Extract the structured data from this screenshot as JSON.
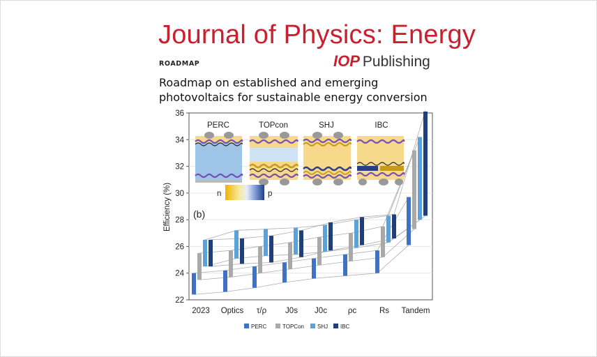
{
  "journal": {
    "name": "Journal of Physics: Energy",
    "article_type": "ROADMAP",
    "publisher_brand": "IOP",
    "publisher_word": "Publishing"
  },
  "paper": {
    "title": "Roadmap on established and emerging photovoltaics for sustainable energy conversion"
  },
  "figure": {
    "panel_label": "(b)",
    "structures": [
      "PERC",
      "TOPcon",
      "SHJ",
      "IBC"
    ],
    "doping_scale": {
      "left": "n",
      "right": "p"
    }
  },
  "colors": {
    "PERC": "#3f72c4",
    "TOPCon": "#a9a9a9",
    "SHJ": "#5aa2d8",
    "IBC": "#213e7a",
    "journal_red": "#c8202f"
  },
  "chart_data": {
    "type": "bar",
    "ylabel": "Efficiency (%)",
    "ylim": [
      22,
      36
    ],
    "yticks": [
      "22",
      "24",
      "26",
      "28",
      "30",
      "32",
      "34",
      "36"
    ],
    "categories": [
      "2023",
      "Optics",
      "τ/ρ",
      "J0s",
      "J0c",
      "ρc",
      "Rs",
      "Tandem"
    ],
    "series": [
      {
        "name": "PERC",
        "ranges": [
          [
            22.4,
            24.0
          ],
          [
            22.6,
            24.2
          ],
          [
            22.9,
            24.5
          ],
          [
            23.3,
            24.8
          ],
          [
            23.6,
            25.1
          ],
          [
            23.8,
            25.4
          ],
          [
            24.0,
            25.7
          ],
          [
            26.1,
            29.7
          ]
        ]
      },
      {
        "name": "TOPCon",
        "ranges": [
          [
            23.5,
            25.5
          ],
          [
            23.7,
            25.7
          ],
          [
            24.0,
            26.0
          ],
          [
            24.3,
            26.3
          ],
          [
            24.6,
            26.7
          ],
          [
            24.9,
            27.0
          ],
          [
            25.2,
            27.5
          ],
          [
            27.3,
            33.2
          ]
        ]
      },
      {
        "name": "SHJ",
        "ranges": [
          [
            24.5,
            26.5
          ],
          [
            25.1,
            27.2
          ],
          [
            25.3,
            27.3
          ],
          [
            25.4,
            27.4
          ],
          [
            25.6,
            27.6
          ],
          [
            25.9,
            28.0
          ],
          [
            26.3,
            28.3
          ],
          [
            28.0,
            34.2
          ]
        ]
      },
      {
        "name": "IBC",
        "ranges": [
          [
            24.5,
            26.5
          ],
          [
            24.7,
            26.6
          ],
          [
            24.8,
            26.8
          ],
          [
            25.2,
            27.2
          ],
          [
            25.7,
            27.8
          ],
          [
            26.1,
            28.2
          ],
          [
            26.6,
            28.4
          ],
          [
            28.3,
            36.2
          ]
        ]
      }
    ]
  }
}
